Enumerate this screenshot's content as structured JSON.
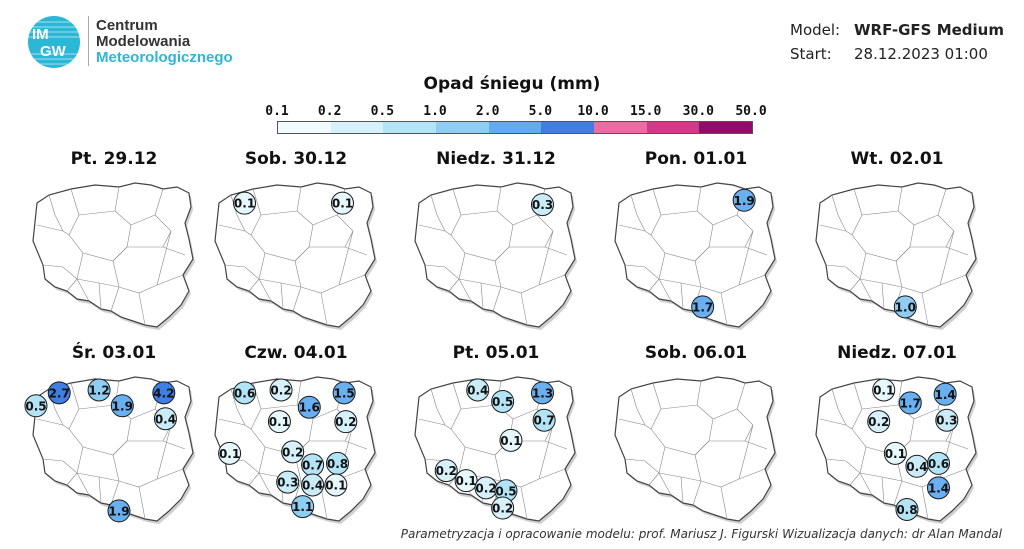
{
  "header": {
    "logo_lines": [
      "Centrum",
      "Modelowania",
      "Meteorologicznego"
    ],
    "logo_letters": [
      "IM",
      "GW"
    ],
    "model_label": "Model:",
    "model_value": "WRF-GFS Medium",
    "start_label": "Start:",
    "start_value": "28.12.2023 01:00"
  },
  "legend": {
    "title": "Opad śniegu (mm)",
    "labels": [
      "0.1",
      "0.2",
      "0.5",
      "1.0",
      "2.0",
      "5.0",
      "10.0",
      "15.0",
      "30.0",
      "50.0"
    ],
    "colors": [
      "#f2fbff",
      "#d6f1fb",
      "#b3e4f6",
      "#8fcdf2",
      "#63abee",
      "#3f7ee2",
      "#ef6aa3",
      "#d63889",
      "#8f0e6b"
    ]
  },
  "panels": [
    {
      "title": "Pt. 29.12",
      "markers": []
    },
    {
      "title": "Sob. 30.12",
      "markers": [
        {
          "value": "0.1",
          "fx": 0.19,
          "fy": 0.14,
          "color": "#e6f7fd"
        },
        {
          "value": "0.1",
          "fx": 0.78,
          "fy": 0.14,
          "color": "#e6f7fd"
        }
      ]
    },
    {
      "title": "Niedz. 31.12",
      "markers": [
        {
          "value": "0.3",
          "fx": 0.78,
          "fy": 0.15,
          "color": "#c9ecf8"
        }
      ]
    },
    {
      "title": "Pon. 01.01",
      "markers": [
        {
          "value": "1.9",
          "fx": 0.79,
          "fy": 0.12,
          "color": "#6aafef"
        },
        {
          "value": "1.7",
          "fx": 0.54,
          "fy": 0.86,
          "color": "#6aafef"
        }
      ]
    },
    {
      "title": "Wt. 02.01",
      "markers": [
        {
          "value": "1.0",
          "fx": 0.55,
          "fy": 0.86,
          "color": "#8fcdf2"
        }
      ]
    },
    {
      "title": "Śr. 03.01",
      "markers": [
        {
          "value": "2.7",
          "fx": 0.17,
          "fy": 0.11,
          "color": "#3f7ee2"
        },
        {
          "value": "1.2",
          "fx": 0.41,
          "fy": 0.09,
          "color": "#8fcdf2"
        },
        {
          "value": "4.2",
          "fx": 0.8,
          "fy": 0.11,
          "color": "#3f7ee2"
        },
        {
          "value": "0.5",
          "fx": 0.03,
          "fy": 0.2,
          "color": "#b3e4f6"
        },
        {
          "value": "1.9",
          "fx": 0.55,
          "fy": 0.2,
          "color": "#6aafef"
        },
        {
          "value": "0.4",
          "fx": 0.81,
          "fy": 0.29,
          "color": "#c9ecf8"
        },
        {
          "value": "1.9",
          "fx": 0.53,
          "fy": 0.93,
          "color": "#6aafef"
        }
      ]
    },
    {
      "title": "Czw. 04.01",
      "markers": [
        {
          "value": "0.6",
          "fx": 0.19,
          "fy": 0.11,
          "color": "#b3e4f6"
        },
        {
          "value": "0.2",
          "fx": 0.41,
          "fy": 0.09,
          "color": "#d6f1fb"
        },
        {
          "value": "1.5",
          "fx": 0.79,
          "fy": 0.11,
          "color": "#6aafef"
        },
        {
          "value": "1.6",
          "fx": 0.58,
          "fy": 0.21,
          "color": "#6aafef"
        },
        {
          "value": "0.1",
          "fx": 0.4,
          "fy": 0.31,
          "color": "#e6f7fd"
        },
        {
          "value": "0.2",
          "fx": 0.8,
          "fy": 0.31,
          "color": "#d6f1fb"
        },
        {
          "value": "0.1",
          "fx": 0.1,
          "fy": 0.53,
          "color": "#e6f7fd"
        },
        {
          "value": "0.2",
          "fx": 0.48,
          "fy": 0.52,
          "color": "#d6f1fb"
        },
        {
          "value": "0.7",
          "fx": 0.6,
          "fy": 0.61,
          "color": "#b3e4f6"
        },
        {
          "value": "0.8",
          "fx": 0.75,
          "fy": 0.6,
          "color": "#b3e4f6"
        },
        {
          "value": "0.3",
          "fx": 0.45,
          "fy": 0.73,
          "color": "#c9ecf8"
        },
        {
          "value": "0.4",
          "fx": 0.6,
          "fy": 0.75,
          "color": "#c9ecf8"
        },
        {
          "value": "0.1",
          "fx": 0.74,
          "fy": 0.75,
          "color": "#e6f7fd"
        },
        {
          "value": "1.1",
          "fx": 0.54,
          "fy": 0.9,
          "color": "#8fcdf2"
        }
      ]
    },
    {
      "title": "Pt. 05.01",
      "markers": [
        {
          "value": "0.4",
          "fx": 0.39,
          "fy": 0.09,
          "color": "#c9ecf8"
        },
        {
          "value": "1.3",
          "fx": 0.78,
          "fy": 0.11,
          "color": "#6aafef"
        },
        {
          "value": "0.5",
          "fx": 0.54,
          "fy": 0.17,
          "color": "#b3e4f6"
        },
        {
          "value": "0.7",
          "fx": 0.79,
          "fy": 0.3,
          "color": "#b3e4f6"
        },
        {
          "value": "0.1",
          "fx": 0.59,
          "fy": 0.44,
          "color": "#e6f7fd"
        },
        {
          "value": "0.2",
          "fx": 0.2,
          "fy": 0.65,
          "color": "#d6f1fb"
        },
        {
          "value": "0.1",
          "fx": 0.32,
          "fy": 0.72,
          "color": "#e6f7fd"
        },
        {
          "value": "0.2",
          "fx": 0.44,
          "fy": 0.77,
          "color": "#d6f1fb"
        },
        {
          "value": "0.5",
          "fx": 0.56,
          "fy": 0.79,
          "color": "#b3e4f6"
        },
        {
          "value": "0.2",
          "fx": 0.54,
          "fy": 0.91,
          "color": "#d6f1fb"
        }
      ]
    },
    {
      "title": "Sob. 06.01",
      "markers": []
    },
    {
      "title": "Niedz. 07.01",
      "markers": [
        {
          "value": "0.1",
          "fx": 0.42,
          "fy": 0.09,
          "color": "#e6f7fd"
        },
        {
          "value": "1.4",
          "fx": 0.79,
          "fy": 0.12,
          "color": "#6aafef"
        },
        {
          "value": "1.7",
          "fx": 0.58,
          "fy": 0.18,
          "color": "#6aafef"
        },
        {
          "value": "0.2",
          "fx": 0.39,
          "fy": 0.31,
          "color": "#d6f1fb"
        },
        {
          "value": "0.3",
          "fx": 0.8,
          "fy": 0.3,
          "color": "#c9ecf8"
        },
        {
          "value": "0.1",
          "fx": 0.49,
          "fy": 0.53,
          "color": "#e6f7fd"
        },
        {
          "value": "0.4",
          "fx": 0.62,
          "fy": 0.62,
          "color": "#c9ecf8"
        },
        {
          "value": "0.6",
          "fx": 0.75,
          "fy": 0.6,
          "color": "#b3e4f6"
        },
        {
          "value": "1.4",
          "fx": 0.75,
          "fy": 0.77,
          "color": "#6aafef"
        },
        {
          "value": "0.8",
          "fx": 0.56,
          "fy": 0.92,
          "color": "#b3e4f6"
        }
      ]
    }
  ],
  "footer": {
    "text": "Parametryzacja i opracowanie modelu: prof. Mariusz J. Figurski    Wizualizacja danych: dr Alan Mandal"
  }
}
